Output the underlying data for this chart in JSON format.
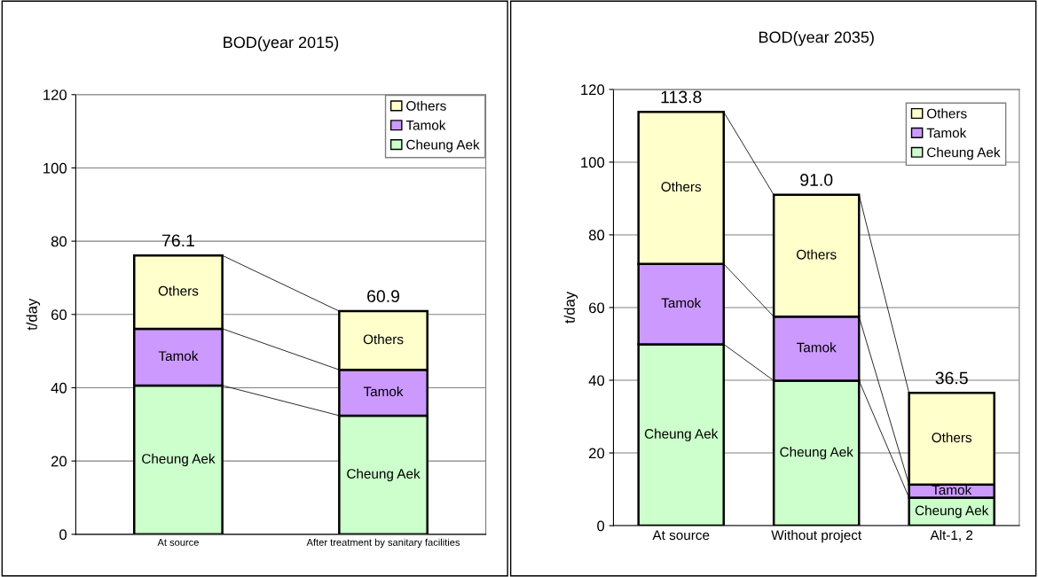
{
  "chart_data": [
    {
      "type": "bar",
      "title": "BOD(year 2015)",
      "ylabel": "t/day",
      "categories": [
        "At source",
        "After treatment by sanitary facilities"
      ],
      "stacked": true,
      "series": [
        {
          "name": "Cheung Aek",
          "color": "#ccffcc",
          "values": [
            40.6,
            32.4
          ]
        },
        {
          "name": "Tamok",
          "color": "#cc99ff",
          "values": [
            15.5,
            12.5
          ]
        },
        {
          "name": "Others",
          "color": "#ffffcc",
          "values": [
            20.0,
            16.0
          ]
        }
      ],
      "totals": [
        "76.1",
        "60.9"
      ],
      "ylim": [
        0,
        120
      ],
      "yticks": [
        0,
        20,
        40,
        60,
        80,
        100,
        120
      ],
      "grid": "y",
      "legend": "top right"
    },
    {
      "type": "bar",
      "title": "BOD(year 2035)",
      "ylabel": "t/day",
      "categories": [
        "At source",
        "Without project",
        "Alt-1, 2"
      ],
      "stacked": true,
      "series": [
        {
          "name": "Cheung Aek",
          "color": "#ccffcc",
          "values": [
            49.9,
            39.9,
            7.7
          ]
        },
        {
          "name": "Tamok",
          "color": "#cc99ff",
          "values": [
            22.1,
            17.6,
            3.6
          ]
        },
        {
          "name": "Others",
          "color": "#ffffcc",
          "values": [
            41.8,
            33.5,
            25.2
          ]
        }
      ],
      "totals": [
        "113.8",
        "91.0",
        "36.5"
      ],
      "ylim": [
        0,
        120
      ],
      "yticks": [
        0,
        20,
        40,
        60,
        80,
        100,
        120
      ],
      "grid": "y",
      "legend": "top right"
    }
  ]
}
